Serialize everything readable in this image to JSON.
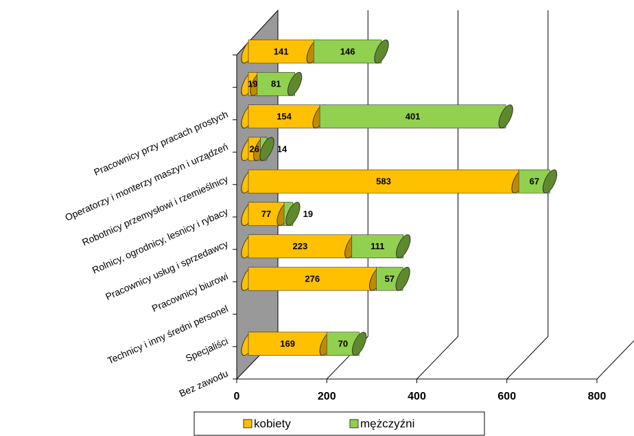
{
  "chart_data": {
    "type": "bar",
    "orientation": "horizontal",
    "stacked": true,
    "categories": [
      null,
      "Pracownicy przy pracach prostych",
      "Operatorzy i monterzy maszyn i urządzeń",
      "Robotnicy przemysłowi i rzemieślnicy",
      "Rolnicy, ogrodnicy, lesnicy i rybacy",
      "Pracownicy usług i sprzedawcy",
      "Pracownicy biurowi",
      "Technicy i inny średni personel",
      "Specjaliści",
      "Bez zawodu"
    ],
    "series": [
      {
        "name": "kobiety",
        "color": "#ffc000",
        "values": [
          141,
          19,
          154,
          26,
          583,
          77,
          223,
          276,
          null,
          169
        ]
      },
      {
        "name": "mężczyźni",
        "color": "#92d050",
        "values": [
          146,
          81,
          401,
          14,
          67,
          19,
          111,
          57,
          null,
          70
        ]
      }
    ],
    "xlim": [
      0,
      800
    ],
    "xticks": [
      0,
      200,
      400,
      600,
      800
    ],
    "grid": true,
    "legend": "bottom"
  }
}
